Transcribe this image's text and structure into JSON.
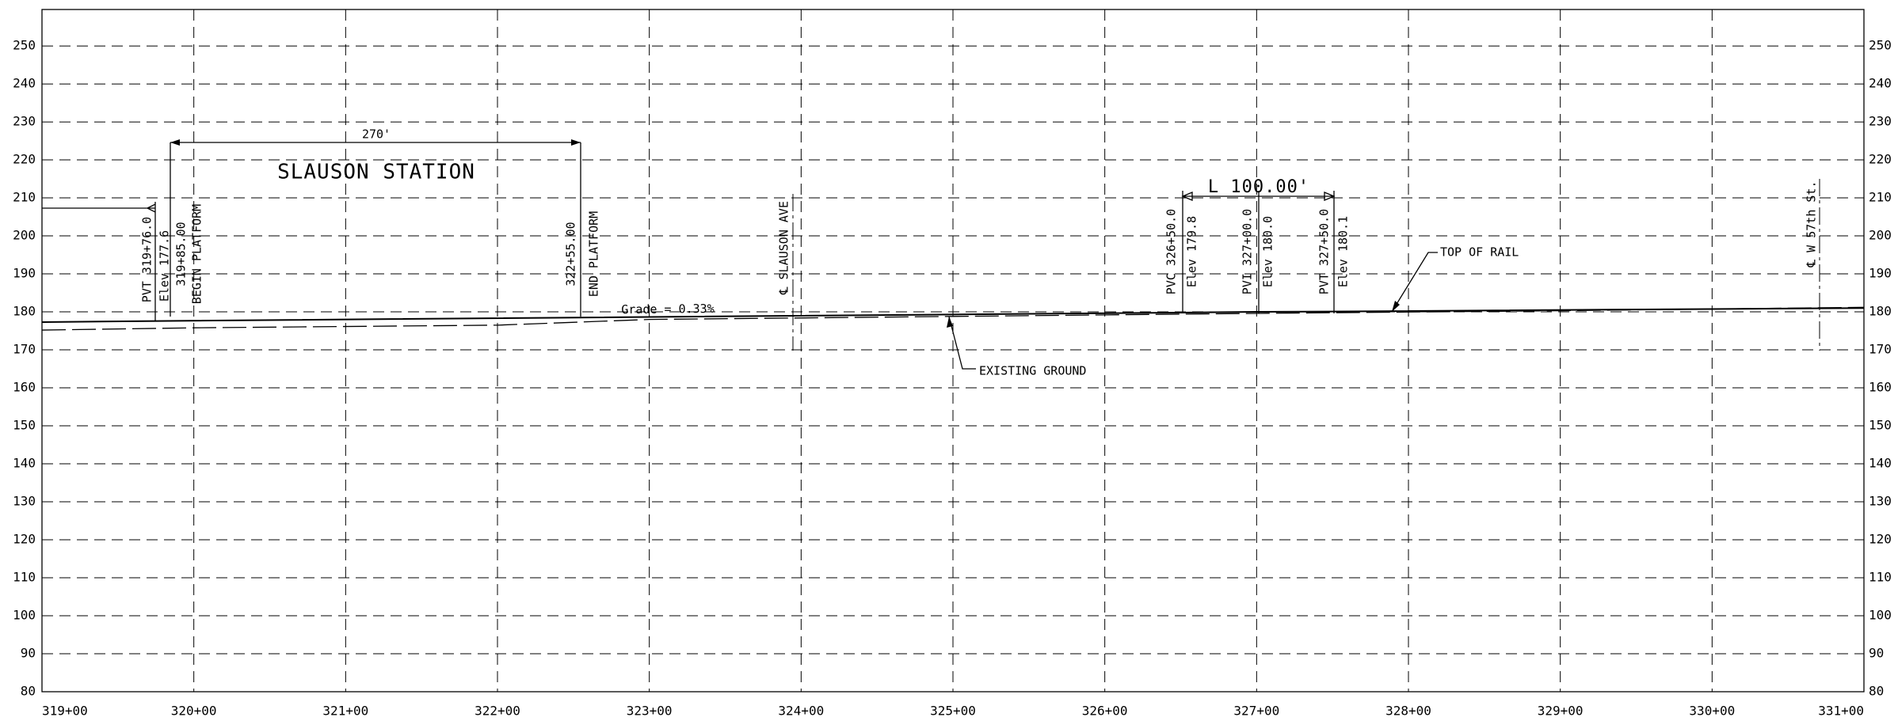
{
  "chart_data": {
    "type": "line",
    "xlim": [
      31900,
      33100
    ],
    "xticks": [
      {
        "value": 31900,
        "label": "319+00"
      },
      {
        "value": 32000,
        "label": "320+00"
      },
      {
        "value": 32100,
        "label": "321+00"
      },
      {
        "value": 32200,
        "label": "322+00"
      },
      {
        "value": 32300,
        "label": "323+00"
      },
      {
        "value": 32400,
        "label": "324+00"
      },
      {
        "value": 32500,
        "label": "325+00"
      },
      {
        "value": 32600,
        "label": "326+00"
      },
      {
        "value": 32700,
        "label": "327+00"
      },
      {
        "value": 32800,
        "label": "328+00"
      },
      {
        "value": 32900,
        "label": "329+00"
      },
      {
        "value": 33000,
        "label": "330+00"
      },
      {
        "value": 33100,
        "label": "331+00"
      }
    ],
    "ylim": [
      80,
      259.6
    ],
    "yticks": [
      80,
      90,
      100,
      110,
      120,
      130,
      140,
      150,
      160,
      170,
      180,
      190,
      200,
      210,
      220,
      230,
      240,
      250
    ],
    "grid": true,
    "series": [
      {
        "name": "TOP OF RAIL",
        "color": "#000000",
        "style": "solid",
        "x": [
          31900,
          31976,
          32650,
          32700,
          32750,
          33100
        ],
        "values": [
          177.3,
          177.6,
          179.8,
          180.0,
          180.1,
          181.0
        ]
      },
      {
        "name": "EXISTING GROUND",
        "color": "#000000",
        "style": "dashed",
        "x": [
          31900,
          32000,
          32200,
          32300,
          32500,
          32700,
          32900,
          33100
        ],
        "values": [
          175.2,
          175.8,
          176.5,
          178.0,
          178.8,
          179.6,
          180.3,
          181.2
        ]
      }
    ],
    "annotations": [
      "270'",
      "SLAUSON STATION",
      "PVT 319+76.0",
      "Elev 177.6",
      "319+85.00",
      "BEGIN PLATFORM",
      "322+55.00",
      "END PLATFORM",
      "Grade = 0.33%",
      "℄ SLAUSON AVE",
      "L 100.00'",
      "PVC 326+50.0",
      "Elev 179.8",
      "PVI 327+00.0",
      "Elev 180.0",
      "PVT 327+50.0",
      "Elev 180.1",
      "℄ W 57th St."
    ]
  }
}
